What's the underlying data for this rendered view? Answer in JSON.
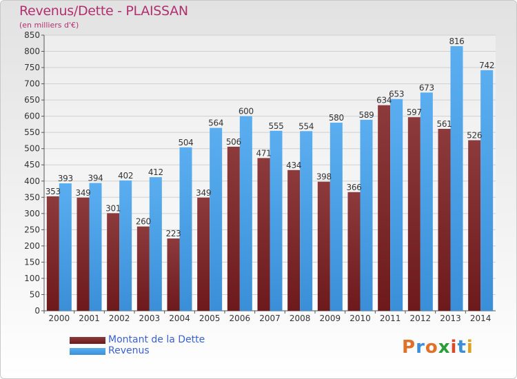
{
  "title": "Revenus/Dette - PLAISSAN",
  "subtitle": "(en milliers d'€)",
  "logo": {
    "text": "Proxiti",
    "letter_colors": [
      "#e0702a",
      "#3a8fd8",
      "#e0702a",
      "#2a9d3a",
      "#d84a2a",
      "#3a8fd8",
      "#e0a020"
    ]
  },
  "colors": {
    "dette": "#6e1a1c",
    "dette_light": "#8c3a3c",
    "revenus": "#3a8fd8",
    "revenus_light": "#5aaef0",
    "axis_text": "#333333",
    "grid": "#cfcfcf"
  },
  "chart_data": {
    "type": "bar",
    "title": "Revenus/Dette - PLAISSAN",
    "ylabel": "",
    "xlabel": "",
    "ylim": [
      0,
      850
    ],
    "y_ticks": [
      0,
      50,
      100,
      150,
      200,
      250,
      300,
      350,
      400,
      450,
      500,
      550,
      600,
      650,
      700,
      750,
      800,
      850
    ],
    "categories": [
      "2000",
      "2001",
      "2002",
      "2003",
      "2004",
      "2005",
      "2006",
      "2007",
      "2008",
      "2009",
      "2010",
      "2011",
      "2012",
      "2013",
      "2014"
    ],
    "series": [
      {
        "name": "Montant de la Dette",
        "values": [
          353,
          349,
          301,
          260,
          223,
          349,
          506,
          471,
          434,
          398,
          366,
          634,
          597,
          561,
          526
        ]
      },
      {
        "name": "Revenus",
        "values": [
          393,
          394,
          402,
          412,
          504,
          564,
          600,
          555,
          554,
          580,
          589,
          653,
          673,
          816,
          742
        ]
      }
    ],
    "grid": true,
    "legend_position": "bottom-left"
  }
}
